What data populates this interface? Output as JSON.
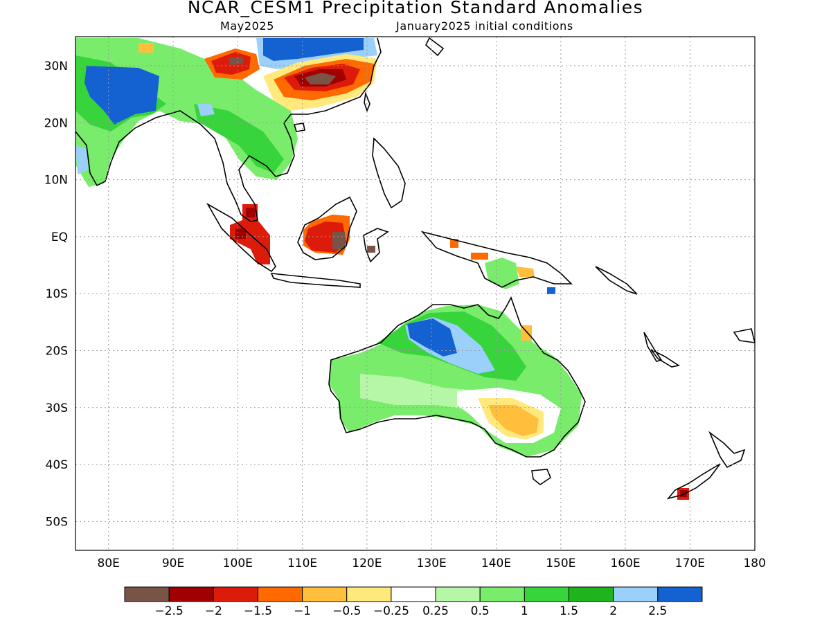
{
  "title": "NCAR_CESM1 Precipitation Standard Anomalies",
  "forecast_month": "May2025",
  "init_conditions": "January2025 initial conditions",
  "lat_labels": [
    "30N",
    "20N",
    "10N",
    "EQ",
    "10S",
    "20S",
    "30S",
    "40S",
    "50S"
  ],
  "lon_labels": [
    "80E",
    "90E",
    "100E",
    "110E",
    "120E",
    "130E",
    "140E",
    "150E",
    "160E",
    "170E",
    "180"
  ],
  "colorbar": {
    "colors": [
      "#7a5347",
      "#a00000",
      "#dc1b0a",
      "#ff6a00",
      "#ffbe3c",
      "#ffe97d",
      "#ffffff",
      "#b5f7a6",
      "#79ec6c",
      "#38d43c",
      "#1eb41e",
      "#9bd0fa",
      "#1462d2"
    ],
    "labels": [
      "−2.5",
      "−2",
      "−1.5",
      "−1",
      "−0.5",
      "−0.25",
      "0.25",
      "0.5",
      "1",
      "1.5",
      "2",
      "2.5"
    ]
  }
}
